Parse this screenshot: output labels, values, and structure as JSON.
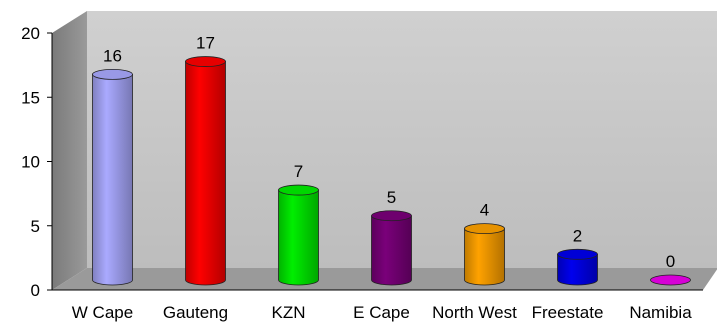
{
  "chart_data": {
    "type": "bar",
    "title": "",
    "xlabel": "",
    "ylabel": "",
    "ylim": [
      0,
      20
    ],
    "yticks": [
      0,
      5,
      10,
      15,
      20
    ],
    "grid": false,
    "legend": "none",
    "categories": [
      "W Cape",
      "Gauteng",
      "KZN",
      "E Cape",
      "North West",
      "Freestate",
      "Namibia"
    ],
    "values": [
      16,
      17,
      7,
      5,
      4,
      2,
      0
    ],
    "bar_colors": [
      "#aaaaff",
      "#ff0000",
      "#00ee00",
      "#7a007a",
      "#ffa200",
      "#0000ee",
      "#ee00ee"
    ],
    "background_colors": {
      "back_wall": "#c8c8c8",
      "side_wall": "#8c8c8c",
      "floor": "#9a9a9a"
    },
    "style": "3d-cylinder"
  }
}
